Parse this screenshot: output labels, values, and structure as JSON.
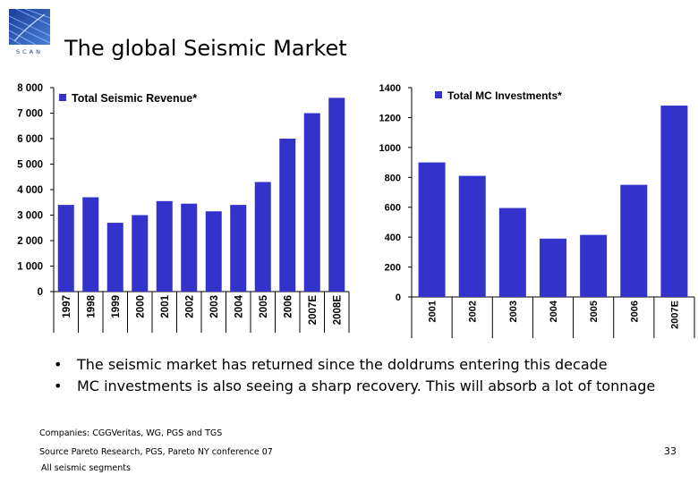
{
  "slide": {
    "logo_text": "SCAN",
    "title": "The global Seismic Market",
    "bullets": [
      "The seismic market has returned since the doldrums entering this decade",
      "MC investments is also seeing a sharp recovery. This will absorb a lot of tonnage"
    ],
    "footnotes": {
      "companies": "Companies: CGGVeritas, WG, PGS and TGS",
      "source": "Source Pareto Research, PGS, Pareto NY conference 07",
      "segments": "All seismic segments"
    },
    "page_number": "33"
  },
  "colors": {
    "bar": "#3333cc",
    "axis": "#000000",
    "logo_bg": "#2244aa"
  },
  "chart_data": [
    {
      "type": "bar",
      "legend": "Total Seismic Revenue*",
      "categories": [
        "1997",
        "1998",
        "1999",
        "2000",
        "2001",
        "2002",
        "2003",
        "2004",
        "2005",
        "2006",
        "2007E",
        "2008E"
      ],
      "values": [
        3400,
        3700,
        2700,
        3000,
        3550,
        3450,
        3150,
        3400,
        4300,
        6000,
        7000,
        7600
      ],
      "ylim": [
        0,
        8000
      ],
      "yticks": [
        "0",
        "1 000",
        "2 000",
        "3 000",
        "4 000",
        "5 000",
        "6 000",
        "7 000",
        "8 000"
      ],
      "legend_position": "top-left"
    },
    {
      "type": "bar",
      "legend": "Total MC Investments*",
      "categories": [
        "2001",
        "2002",
        "2003",
        "2004",
        "2005",
        "2006",
        "2007E"
      ],
      "values": [
        900,
        810,
        595,
        390,
        415,
        750,
        1280
      ],
      "ylim": [
        0,
        1400
      ],
      "yticks": [
        "0",
        "200",
        "400",
        "600",
        "800",
        "1000",
        "1200",
        "1400"
      ],
      "legend_position": "top-left"
    }
  ]
}
